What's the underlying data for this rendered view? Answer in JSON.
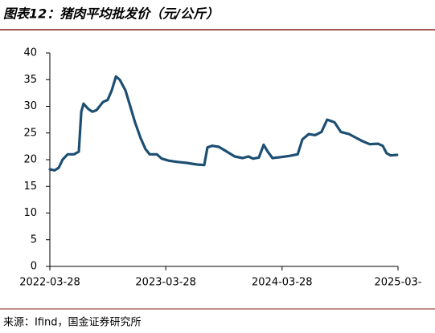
{
  "chart_data": {
    "type": "line",
    "title": "图表12：猪肉平均批发价（元/公斤）",
    "source": "来源：Ifind，国金证券研究所",
    "x": [
      "2022-03-28",
      "2022-04-12",
      "2022-04-25",
      "2022-05-07",
      "2022-05-23",
      "2022-06-12",
      "2022-06-27",
      "2022-07-05",
      "2022-07-12",
      "2022-07-27",
      "2022-08-09",
      "2022-08-22",
      "2022-09-11",
      "2022-09-26",
      "2022-10-09",
      "2022-10-22",
      "2022-11-03",
      "2022-11-21",
      "2022-12-06",
      "2022-12-21",
      "2023-01-08",
      "2023-01-23",
      "2023-02-05",
      "2023-02-28",
      "2023-03-15",
      "2023-04-07",
      "2023-05-02",
      "2023-06-01",
      "2023-07-04",
      "2023-07-27",
      "2023-08-06",
      "2023-08-21",
      "2023-09-11",
      "2023-10-06",
      "2023-10-31",
      "2023-11-25",
      "2023-12-13",
      "2023-12-28",
      "2024-01-15",
      "2024-01-30",
      "2024-02-12",
      "2024-02-27",
      "2024-03-26",
      "2024-04-20",
      "2024-05-16",
      "2024-05-31",
      "2024-06-20",
      "2024-07-10",
      "2024-07-30",
      "2024-08-17",
      "2024-09-09",
      "2024-09-29",
      "2024-10-25",
      "2024-11-19",
      "2024-12-09",
      "2024-12-29",
      "2025-01-24",
      "2025-02-08",
      "2025-02-20",
      "2025-03-05",
      "2025-03-25"
    ],
    "series": [
      {
        "name": "猪肉平均批发价",
        "color": "#1d4f73",
        "values": [
          18.2,
          18.0,
          18.5,
          20.0,
          21.0,
          21.0,
          21.5,
          29.0,
          30.5,
          29.5,
          29.0,
          29.3,
          30.8,
          31.2,
          33.0,
          35.6,
          35.0,
          33.0,
          30.0,
          27.0,
          24.0,
          22.0,
          21.0,
          21.0,
          20.2,
          19.8,
          19.6,
          19.4,
          19.1,
          19.0,
          22.3,
          22.6,
          22.4,
          21.5,
          20.6,
          20.3,
          20.6,
          20.2,
          20.4,
          22.8,
          21.5,
          20.3,
          20.5,
          20.7,
          21.0,
          23.8,
          24.8,
          24.6,
          25.2,
          27.5,
          27.0,
          25.2,
          24.8,
          24.0,
          23.4,
          22.9,
          23.0,
          22.6,
          21.2,
          20.8,
          20.9
        ]
      }
    ],
    "xlim": [
      "2022-03-28",
      "2025-03-28"
    ],
    "xticks": [
      "2022-03-28",
      "2023-03-28",
      "2024-03-28",
      {
        "value": "2025-03-28",
        "label": "2025-03-"
      }
    ],
    "ylim": [
      0,
      40
    ],
    "yticks": [
      0,
      5,
      10,
      15,
      20,
      25,
      30,
      35,
      40
    ],
    "grid": false
  }
}
